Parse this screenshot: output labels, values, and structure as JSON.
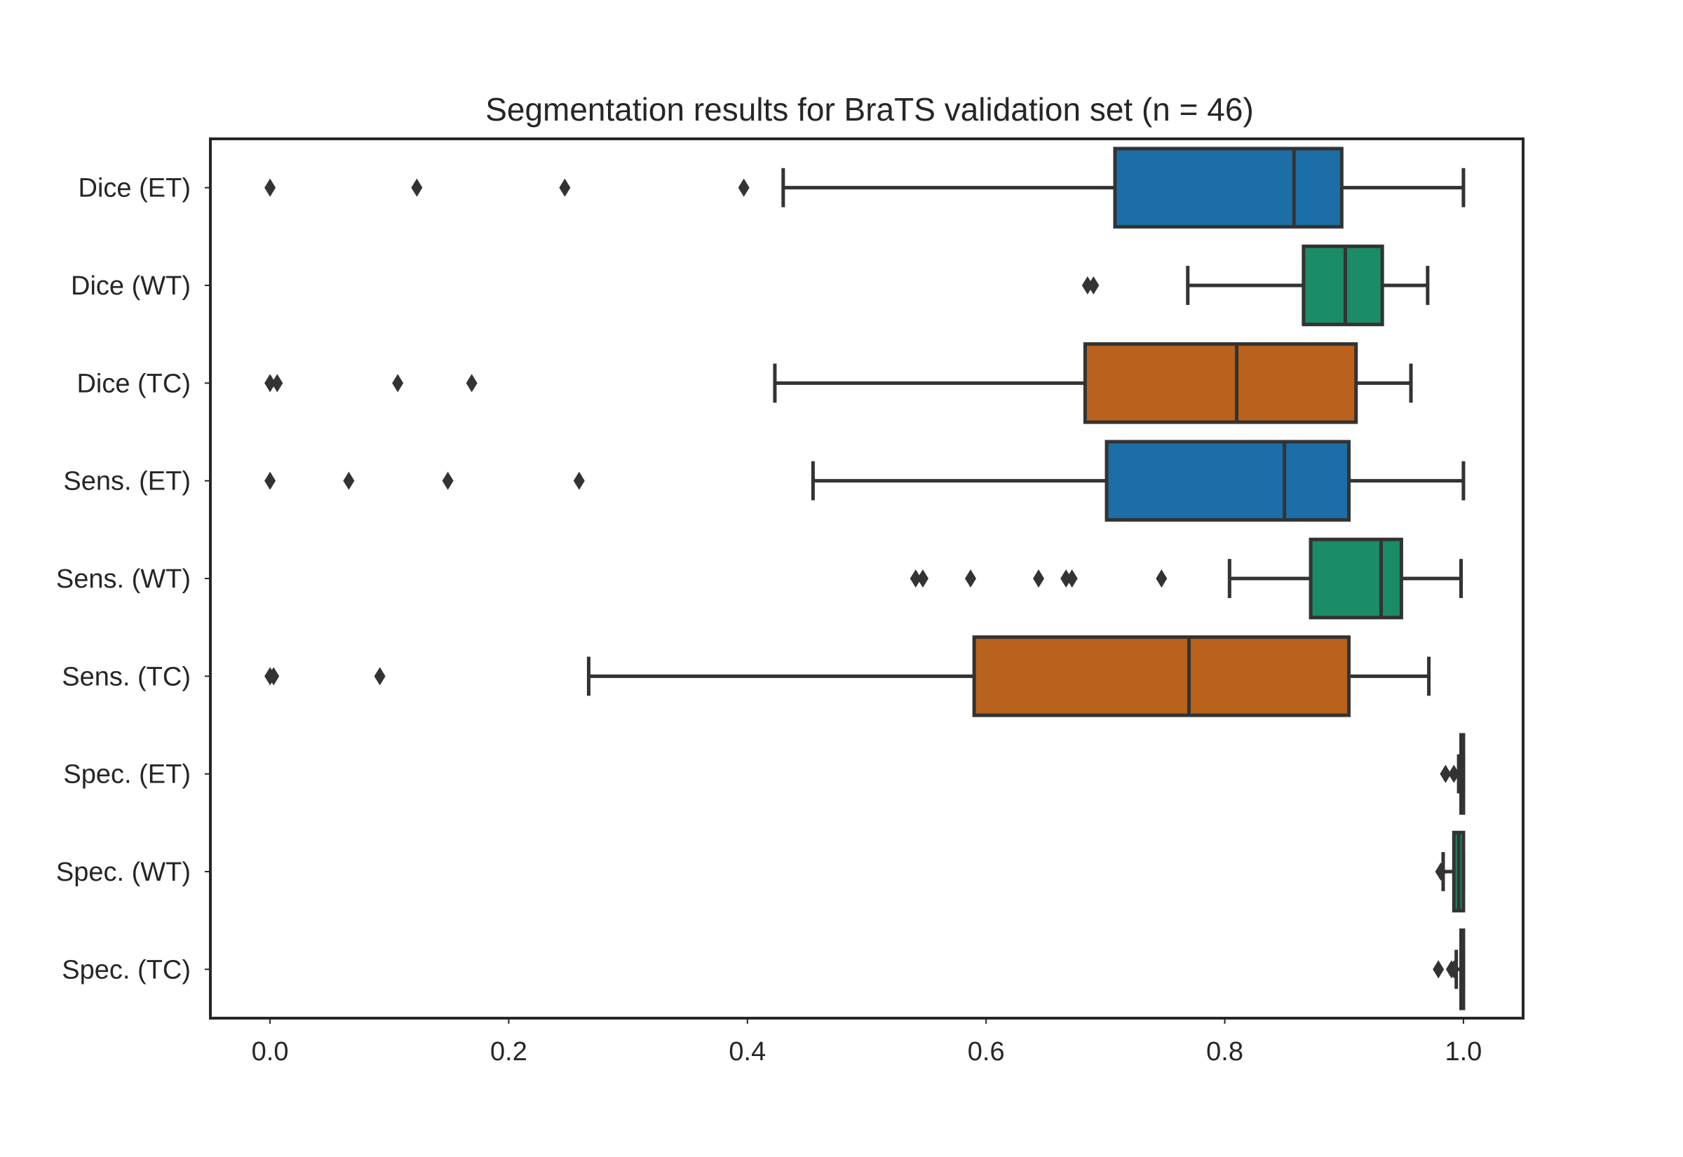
{
  "chart_data": {
    "type": "boxplot",
    "orientation": "horizontal",
    "title": "Segmentation results for BraTS validation set (n = 46)",
    "xlabel": "",
    "ylabel": "",
    "xlim": [
      -0.05,
      1.05
    ],
    "xticks": [
      0.0,
      0.2,
      0.4,
      0.6,
      0.8,
      1.0
    ],
    "xtick_labels": [
      "0.0",
      "0.2",
      "0.4",
      "0.6",
      "0.8",
      "1.0"
    ],
    "grid": false,
    "series": [
      {
        "name": "Dice (ET)",
        "color": "#1b6fa6",
        "q1": 0.708,
        "median": 0.858,
        "q3": 0.898,
        "whisker_low": 0.43,
        "whisker_high": 1.0,
        "outliers": [
          0.0,
          0.123,
          0.247,
          0.397
        ]
      },
      {
        "name": "Dice (WT)",
        "color": "#1a8c67",
        "q1": 0.866,
        "median": 0.901,
        "q3": 0.932,
        "whisker_low": 0.769,
        "whisker_high": 0.97,
        "outliers": [
          0.685,
          0.69
        ]
      },
      {
        "name": "Dice (TC)",
        "color": "#b8621b",
        "q1": 0.683,
        "median": 0.81,
        "q3": 0.91,
        "whisker_low": 0.423,
        "whisker_high": 0.956,
        "outliers": [
          0.0,
          0.006,
          0.107,
          0.169
        ]
      },
      {
        "name": "Sens. (ET)",
        "color": "#1b6fa6",
        "q1": 0.701,
        "median": 0.85,
        "q3": 0.904,
        "whisker_low": 0.455,
        "whisker_high": 1.0,
        "outliers": [
          0.0,
          0.066,
          0.149,
          0.259
        ]
      },
      {
        "name": "Sens. (WT)",
        "color": "#1a8c67",
        "q1": 0.872,
        "median": 0.931,
        "q3": 0.948,
        "whisker_low": 0.804,
        "whisker_high": 0.998,
        "outliers": [
          0.541,
          0.547,
          0.587,
          0.644,
          0.667,
          0.672,
          0.747
        ]
      },
      {
        "name": "Sens. (TC)",
        "color": "#b8621b",
        "q1": 0.59,
        "median": 0.77,
        "q3": 0.904,
        "whisker_low": 0.267,
        "whisker_high": 0.971,
        "outliers": [
          0.0,
          0.003,
          0.092
        ]
      },
      {
        "name": "Spec. (ET)",
        "color": "#1b6fa6",
        "q1": 0.998,
        "median": 0.999,
        "q3": 1.0,
        "whisker_low": 0.996,
        "whisker_high": 1.0,
        "outliers": [
          0.985,
          0.992
        ]
      },
      {
        "name": "Spec. (WT)",
        "color": "#1a8c67",
        "q1": 0.992,
        "median": 0.996,
        "q3": 1.0,
        "whisker_low": 0.983,
        "whisker_high": 1.0,
        "outliers": [
          0.981
        ]
      },
      {
        "name": "Spec. (TC)",
        "color": "#b8621b",
        "q1": 0.998,
        "median": 0.999,
        "q3": 1.0,
        "whisker_low": 0.994,
        "whisker_high": 1.0,
        "outliers": [
          0.979,
          0.99,
          0.992
        ]
      }
    ]
  }
}
